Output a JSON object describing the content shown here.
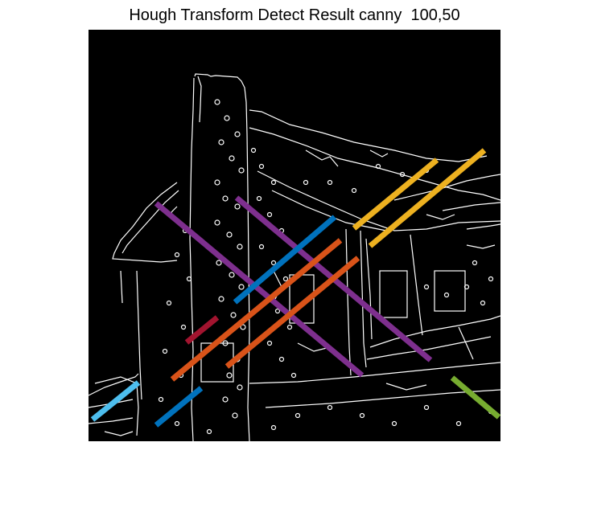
{
  "figure": {
    "title": "Hough Transform Detect Result canny  100,50"
  },
  "image": {
    "background_color": "#000000",
    "edge_color": "#ffffff"
  },
  "detected_lines": {
    "colors": {
      "yellow": "#EDB120",
      "purple": "#7E2F8E",
      "blue": "#0072BD",
      "orange": "#D95319",
      "dark-red": "#A2142F",
      "light-blue": "#4DBEEE",
      "green": "#77AC30"
    },
    "count": 11
  }
}
